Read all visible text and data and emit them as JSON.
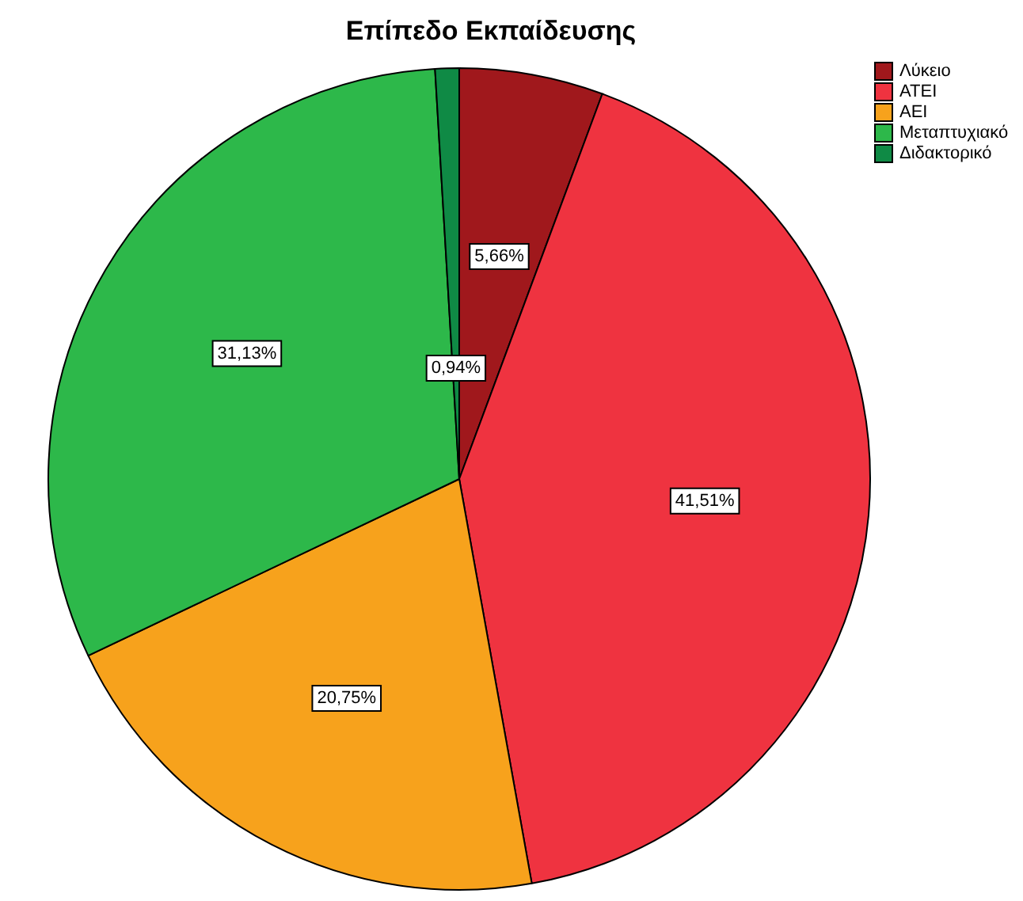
{
  "chart_data": {
    "type": "pie",
    "title": "Επίπεδο Εκπαίδευσης",
    "categories": [
      "Λύκειο",
      "ΑΤΕΙ",
      "ΑΕΙ",
      "Μεταπτυχιακό",
      "Διδακτορικό"
    ],
    "values": [
      5.66,
      41.51,
      20.75,
      31.13,
      0.94
    ],
    "colors": [
      "#a0181c",
      "#ef3340",
      "#f7a21c",
      "#2db84a",
      "#0f8a45"
    ],
    "value_labels": [
      "5,66%",
      "41,51%",
      "20,75%",
      "31,13%",
      "0,94%"
    ],
    "legend": "top right"
  }
}
